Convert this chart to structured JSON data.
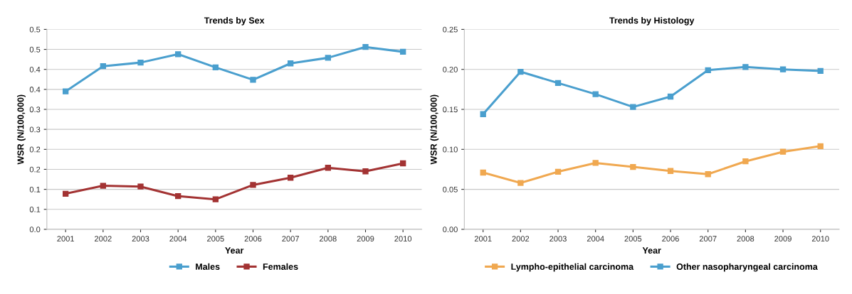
{
  "chart_data": [
    {
      "type": "line",
      "title": "Trends by Sex",
      "xlabel": "Year",
      "ylabel": "WSR (N/100,000)",
      "categories": [
        "2001",
        "2002",
        "2003",
        "2004",
        "2005",
        "2006",
        "2007",
        "2008",
        "2009",
        "2010"
      ],
      "series": [
        {
          "name": "Males",
          "color": "#4a9fce",
          "values": [
            0.345,
            0.408,
            0.417,
            0.438,
            0.405,
            0.374,
            0.415,
            0.429,
            0.456,
            0.444
          ]
        },
        {
          "name": "Females",
          "color": "#a33333",
          "values": [
            0.089,
            0.109,
            0.107,
            0.083,
            0.075,
            0.111,
            0.129,
            0.154,
            0.145,
            0.165
          ]
        }
      ],
      "ylim": [
        0,
        0.5
      ],
      "yticks": [
        {
          "value": 0,
          "label": "0.0"
        },
        {
          "value": 0.05,
          "label": "0.1"
        },
        {
          "value": 0.1,
          "label": "0.1"
        },
        {
          "value": 0.15,
          "label": "0.2"
        },
        {
          "value": 0.2,
          "label": "0.2"
        },
        {
          "value": 0.25,
          "label": "0.3"
        },
        {
          "value": 0.3,
          "label": "0.3"
        },
        {
          "value": 0.35,
          "label": "0.4"
        },
        {
          "value": 0.4,
          "label": "0.4"
        },
        {
          "value": 0.45,
          "label": "0.5"
        },
        {
          "value": 0.5,
          "label": "0.5"
        }
      ],
      "grid": "y",
      "legend": "bottom",
      "marker": "square",
      "line_style": "solid"
    },
    {
      "type": "line",
      "title": "Trends by Histology",
      "xlabel": "Year",
      "ylabel": "WSR (N/100,000)",
      "categories": [
        "2001",
        "2002",
        "2003",
        "2004",
        "2005",
        "2006",
        "2007",
        "2008",
        "2009",
        "2010"
      ],
      "series": [
        {
          "name": "Lympho-epithelial carcinoma",
          "color": "#f0a850",
          "values": [
            0.071,
            0.058,
            0.072,
            0.083,
            0.078,
            0.073,
            0.069,
            0.085,
            0.097,
            0.104
          ]
        },
        {
          "name": "Other nasopharyngeal carcinoma",
          "color": "#4a9fce",
          "values": [
            0.144,
            0.197,
            0.183,
            0.169,
            0.153,
            0.166,
            0.199,
            0.203,
            0.2,
            0.198
          ]
        }
      ],
      "ylim": [
        0,
        0.25
      ],
      "yticks": [
        {
          "value": 0,
          "label": "0.00"
        },
        {
          "value": 0.05,
          "label": "0.05"
        },
        {
          "value": 0.1,
          "label": "0.10"
        },
        {
          "value": 0.15,
          "label": "0.15"
        },
        {
          "value": 0.2,
          "label": "0.20"
        },
        {
          "value": 0.25,
          "label": "0.25"
        }
      ],
      "grid": "y",
      "legend": "bottom",
      "marker": "square",
      "line_style": "solid"
    }
  ]
}
